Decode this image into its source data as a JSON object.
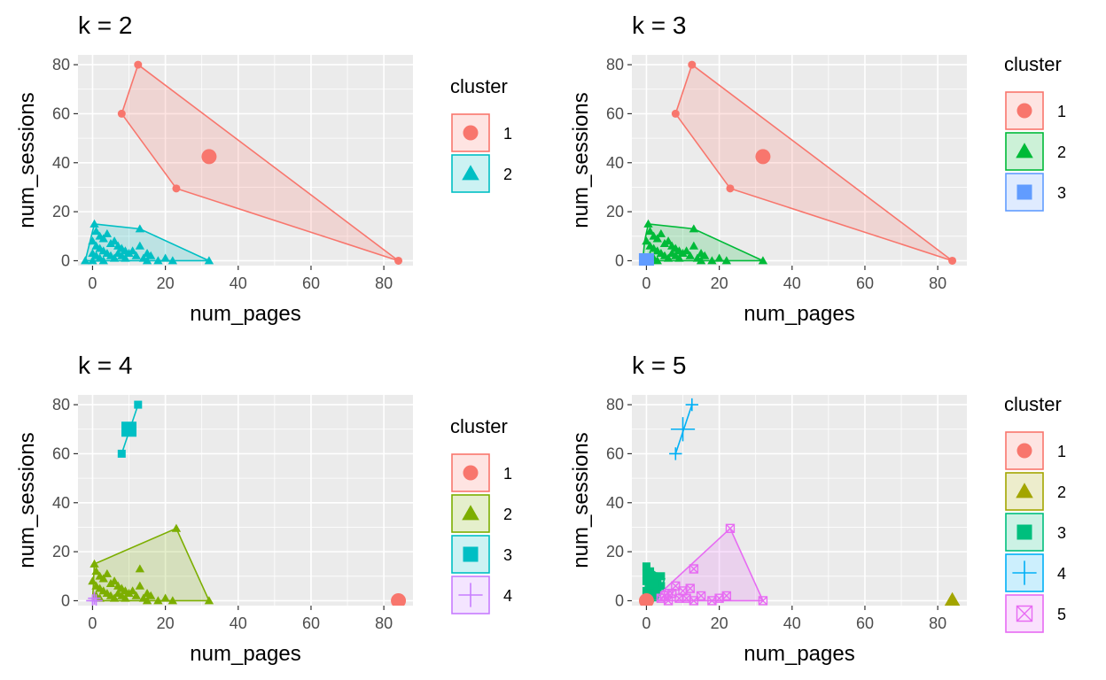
{
  "figure": {
    "x_axis_label": "num_pages",
    "y_axis_label": "num_sessions",
    "legend_title": "cluster"
  },
  "colors": {
    "panel_bg": "#ebebeb",
    "grid": "#ffffff",
    "k2": [
      "#f8766d",
      "#00bfc4"
    ],
    "k3": [
      "#f8766d",
      "#00ba38",
      "#619cff"
    ],
    "k4": [
      "#f8766d",
      "#7cae00",
      "#00bfc4",
      "#c77cff"
    ],
    "k5": [
      "#f8766d",
      "#a3a500",
      "#00bf7d",
      "#00b0f6",
      "#e76bf3"
    ]
  },
  "chart_data": [
    {
      "type": "scatter",
      "title": "k = 2",
      "xlabel": "num_pages",
      "ylabel": "num_sessions",
      "xlim": [
        -4,
        88
      ],
      "ylim": [
        -2,
        84
      ],
      "x_ticks": [
        0,
        20,
        40,
        60,
        80
      ],
      "y_ticks": [
        0,
        20,
        40,
        60,
        80
      ],
      "legend": {
        "title": "cluster",
        "entries": [
          "1",
          "2"
        ],
        "shapes": [
          "circle",
          "triangle"
        ],
        "placement": "right"
      },
      "hulls": [
        {
          "cluster": "1",
          "points": [
            [
              12.5,
              80
            ],
            [
              84,
              0
            ],
            [
              23,
              29.5
            ],
            [
              8,
              60
            ]
          ]
        },
        {
          "cluster": "2",
          "points": [
            [
              0.5,
              15
            ],
            [
              13,
              13
            ],
            [
              32,
              0
            ],
            [
              -2,
              0
            ]
          ]
        }
      ],
      "centers": [
        {
          "cluster": "1",
          "x": 32,
          "y": 42.5
        }
      ],
      "series": [
        {
          "name": "1",
          "shape": "circle",
          "points": [
            [
              12.5,
              80
            ],
            [
              8,
              60
            ],
            [
              23,
              29.5
            ],
            [
              84,
              0
            ]
          ]
        },
        {
          "name": "2",
          "shape": "triangle",
          "points": [
            [
              0.5,
              15
            ],
            [
              13,
              13
            ],
            [
              32,
              0
            ],
            [
              -2,
              0
            ],
            [
              1,
              12
            ],
            [
              2,
              10
            ],
            [
              3,
              9
            ],
            [
              4,
              11
            ],
            [
              5,
              7
            ],
            [
              6,
              8
            ],
            [
              7,
              6
            ],
            [
              8,
              5
            ],
            [
              9,
              4
            ],
            [
              10,
              3
            ],
            [
              12,
              2
            ],
            [
              14,
              1
            ],
            [
              15,
              3
            ],
            [
              16,
              2
            ],
            [
              0,
              8
            ],
            [
              1,
              6
            ],
            [
              2,
              5
            ],
            [
              3,
              4
            ],
            [
              4,
              3
            ],
            [
              5,
              2
            ],
            [
              6,
              1
            ],
            [
              0,
              3
            ],
            [
              1,
              2
            ],
            [
              2,
              1
            ],
            [
              3,
              0
            ],
            [
              0,
              0
            ],
            [
              8,
              2
            ],
            [
              11,
              4
            ],
            [
              13,
              6
            ],
            [
              15,
              0
            ],
            [
              20,
              1
            ],
            [
              22,
              0
            ],
            [
              18,
              0
            ],
            [
              7,
              3
            ],
            [
              9,
              1
            ]
          ]
        }
      ]
    },
    {
      "type": "scatter",
      "title": "k = 3",
      "xlabel": "num_pages",
      "ylabel": "num_sessions",
      "xlim": [
        -4,
        88
      ],
      "ylim": [
        -2,
        84
      ],
      "x_ticks": [
        0,
        20,
        40,
        60,
        80
      ],
      "y_ticks": [
        0,
        20,
        40,
        60,
        80
      ],
      "legend": {
        "title": "cluster",
        "entries": [
          "1",
          "2",
          "3"
        ],
        "shapes": [
          "circle",
          "triangle",
          "square"
        ],
        "placement": "right"
      },
      "hulls": [
        {
          "cluster": "1",
          "points": [
            [
              12.5,
              80
            ],
            [
              84,
              0
            ],
            [
              23,
              29.5
            ],
            [
              8,
              60
            ]
          ]
        },
        {
          "cluster": "2",
          "points": [
            [
              0.5,
              15
            ],
            [
              13,
              13
            ],
            [
              32,
              0
            ],
            [
              -1,
              0
            ],
            [
              -0.5,
              8
            ]
          ]
        }
      ],
      "centers": [
        {
          "cluster": "1",
          "x": 32,
          "y": 42.5
        },
        {
          "cluster": "3",
          "x": 0,
          "y": 0
        }
      ],
      "series": [
        {
          "name": "1",
          "shape": "circle",
          "points": [
            [
              12.5,
              80
            ],
            [
              8,
              60
            ],
            [
              23,
              29.5
            ],
            [
              84,
              0
            ]
          ]
        },
        {
          "name": "2",
          "shape": "triangle",
          "points": [
            [
              0.5,
              15
            ],
            [
              13,
              13
            ],
            [
              32,
              0
            ],
            [
              1,
              12
            ],
            [
              2,
              10
            ],
            [
              3,
              9
            ],
            [
              4,
              11
            ],
            [
              5,
              7
            ],
            [
              6,
              8
            ],
            [
              7,
              6
            ],
            [
              8,
              5
            ],
            [
              9,
              4
            ],
            [
              10,
              3
            ],
            [
              12,
              2
            ],
            [
              14,
              1
            ],
            [
              15,
              3
            ],
            [
              16,
              2
            ],
            [
              0,
              8
            ],
            [
              1,
              6
            ],
            [
              2,
              5
            ],
            [
              3,
              4
            ],
            [
              4,
              3
            ],
            [
              5,
              2
            ],
            [
              6,
              1
            ],
            [
              1,
              2
            ],
            [
              2,
              1
            ],
            [
              3,
              0
            ],
            [
              8,
              2
            ],
            [
              11,
              4
            ],
            [
              13,
              6
            ],
            [
              15,
              0
            ],
            [
              20,
              1
            ],
            [
              22,
              0
            ],
            [
              18,
              0
            ],
            [
              7,
              3
            ],
            [
              9,
              1
            ]
          ]
        },
        {
          "name": "3",
          "shape": "square",
          "points": [
            [
              0,
              0
            ],
            [
              0.5,
              0.5
            ],
            [
              0,
              1
            ]
          ]
        }
      ]
    },
    {
      "type": "scatter",
      "title": "k = 4",
      "xlabel": "num_pages",
      "ylabel": "num_sessions",
      "xlim": [
        -4,
        88
      ],
      "ylim": [
        -2,
        84
      ],
      "x_ticks": [
        0,
        20,
        40,
        60,
        80
      ],
      "y_ticks": [
        0,
        20,
        40,
        60,
        80
      ],
      "legend": {
        "title": "cluster",
        "entries": [
          "1",
          "2",
          "3",
          "4"
        ],
        "shapes": [
          "circle",
          "triangle",
          "square",
          "plus"
        ],
        "placement": "right"
      },
      "hulls": [
        {
          "cluster": "2",
          "points": [
            [
              0.5,
              15
            ],
            [
              23,
              29.5
            ],
            [
              32,
              0
            ],
            [
              0,
              0
            ]
          ]
        },
        {
          "cluster": "3",
          "points": [
            [
              12.5,
              80
            ],
            [
              8,
              60
            ]
          ]
        }
      ],
      "centers": [
        {
          "cluster": "1",
          "x": 84,
          "y": 0
        },
        {
          "cluster": "3",
          "x": 10,
          "y": 70
        }
      ],
      "series": [
        {
          "name": "1",
          "shape": "circle",
          "points": [
            [
              84,
              0
            ]
          ]
        },
        {
          "name": "2",
          "shape": "triangle",
          "points": [
            [
              0.5,
              15
            ],
            [
              23,
              29.5
            ],
            [
              32,
              0
            ],
            [
              13,
              13
            ],
            [
              1,
              12
            ],
            [
              2,
              10
            ],
            [
              3,
              9
            ],
            [
              4,
              11
            ],
            [
              5,
              7
            ],
            [
              6,
              8
            ],
            [
              7,
              6
            ],
            [
              8,
              5
            ],
            [
              9,
              4
            ],
            [
              10,
              3
            ],
            [
              12,
              2
            ],
            [
              14,
              1
            ],
            [
              15,
              3
            ],
            [
              16,
              2
            ],
            [
              0,
              8
            ],
            [
              1,
              6
            ],
            [
              2,
              5
            ],
            [
              3,
              4
            ],
            [
              4,
              3
            ],
            [
              5,
              2
            ],
            [
              6,
              1
            ],
            [
              1,
              2
            ],
            [
              2,
              1
            ],
            [
              8,
              2
            ],
            [
              11,
              4
            ],
            [
              13,
              6
            ],
            [
              15,
              0
            ],
            [
              20,
              1
            ],
            [
              22,
              0
            ],
            [
              18,
              0
            ],
            [
              7,
              3
            ],
            [
              9,
              1
            ]
          ]
        },
        {
          "name": "3",
          "shape": "square",
          "points": [
            [
              12.5,
              80
            ],
            [
              8,
              60
            ]
          ]
        },
        {
          "name": "4",
          "shape": "plus",
          "points": [
            [
              0,
              0
            ],
            [
              0.5,
              1
            ],
            [
              1,
              0
            ]
          ]
        }
      ]
    },
    {
      "type": "scatter",
      "title": "k = 5",
      "xlabel": "num_pages",
      "ylabel": "num_sessions",
      "xlim": [
        -4,
        88
      ],
      "ylim": [
        -2,
        84
      ],
      "x_ticks": [
        0,
        20,
        40,
        60,
        80
      ],
      "y_ticks": [
        0,
        20,
        40,
        60,
        80
      ],
      "legend": {
        "title": "cluster",
        "entries": [
          "1",
          "2",
          "3",
          "4",
          "5"
        ],
        "shapes": [
          "circle",
          "triangle",
          "square",
          "plus",
          "boxx"
        ],
        "placement": "right"
      },
      "hulls": [
        {
          "cluster": "3",
          "points": [
            [
              0,
              14
            ],
            [
              4,
              10
            ],
            [
              5,
              9
            ],
            [
              3,
              0
            ],
            [
              -0.5,
              0
            ]
          ]
        },
        {
          "cluster": "4",
          "points": [
            [
              12.5,
              80
            ],
            [
              8,
              60
            ]
          ]
        },
        {
          "cluster": "5",
          "points": [
            [
              23,
              29.5
            ],
            [
              32,
              0
            ],
            [
              3,
              0
            ],
            [
              3,
              2
            ]
          ]
        }
      ],
      "centers": [
        {
          "cluster": "1",
          "x": 0,
          "y": 0
        },
        {
          "cluster": "2",
          "x": 84,
          "y": 0
        },
        {
          "cluster": "4",
          "x": 10,
          "y": 70
        }
      ],
      "series": [
        {
          "name": "1",
          "shape": "circle",
          "points": [
            [
              0,
              0
            ]
          ]
        },
        {
          "name": "2",
          "shape": "triangle",
          "points": [
            [
              84,
              0
            ]
          ]
        },
        {
          "name": "3",
          "shape": "square",
          "points": [
            [
              0,
              14
            ],
            [
              1,
              12
            ],
            [
              2,
              10
            ],
            [
              3,
              9
            ],
            [
              4,
              10
            ],
            [
              0,
              8
            ],
            [
              1,
              6
            ],
            [
              2,
              5
            ],
            [
              0,
              4
            ],
            [
              1,
              3
            ],
            [
              2,
              2
            ],
            [
              0,
              2
            ],
            [
              1,
              1
            ],
            [
              3,
              4
            ],
            [
              4,
              6
            ],
            [
              0,
              11
            ],
            [
              2,
              7
            ]
          ]
        },
        {
          "name": "4",
          "shape": "plus",
          "points": [
            [
              12.5,
              80
            ],
            [
              8,
              60
            ]
          ]
        },
        {
          "name": "5",
          "shape": "boxx",
          "points": [
            [
              23,
              29.5
            ],
            [
              32,
              0
            ],
            [
              13,
              13
            ],
            [
              8,
              6
            ],
            [
              10,
              4
            ],
            [
              12,
              5
            ],
            [
              15,
              2
            ],
            [
              20,
              1
            ],
            [
              22,
              2
            ],
            [
              5,
              2
            ],
            [
              6,
              0
            ],
            [
              7,
              3
            ],
            [
              9,
              1
            ],
            [
              11,
              1
            ],
            [
              13,
              0
            ],
            [
              18,
              0
            ],
            [
              4,
              1
            ],
            [
              6,
              3
            ]
          ]
        }
      ]
    }
  ]
}
